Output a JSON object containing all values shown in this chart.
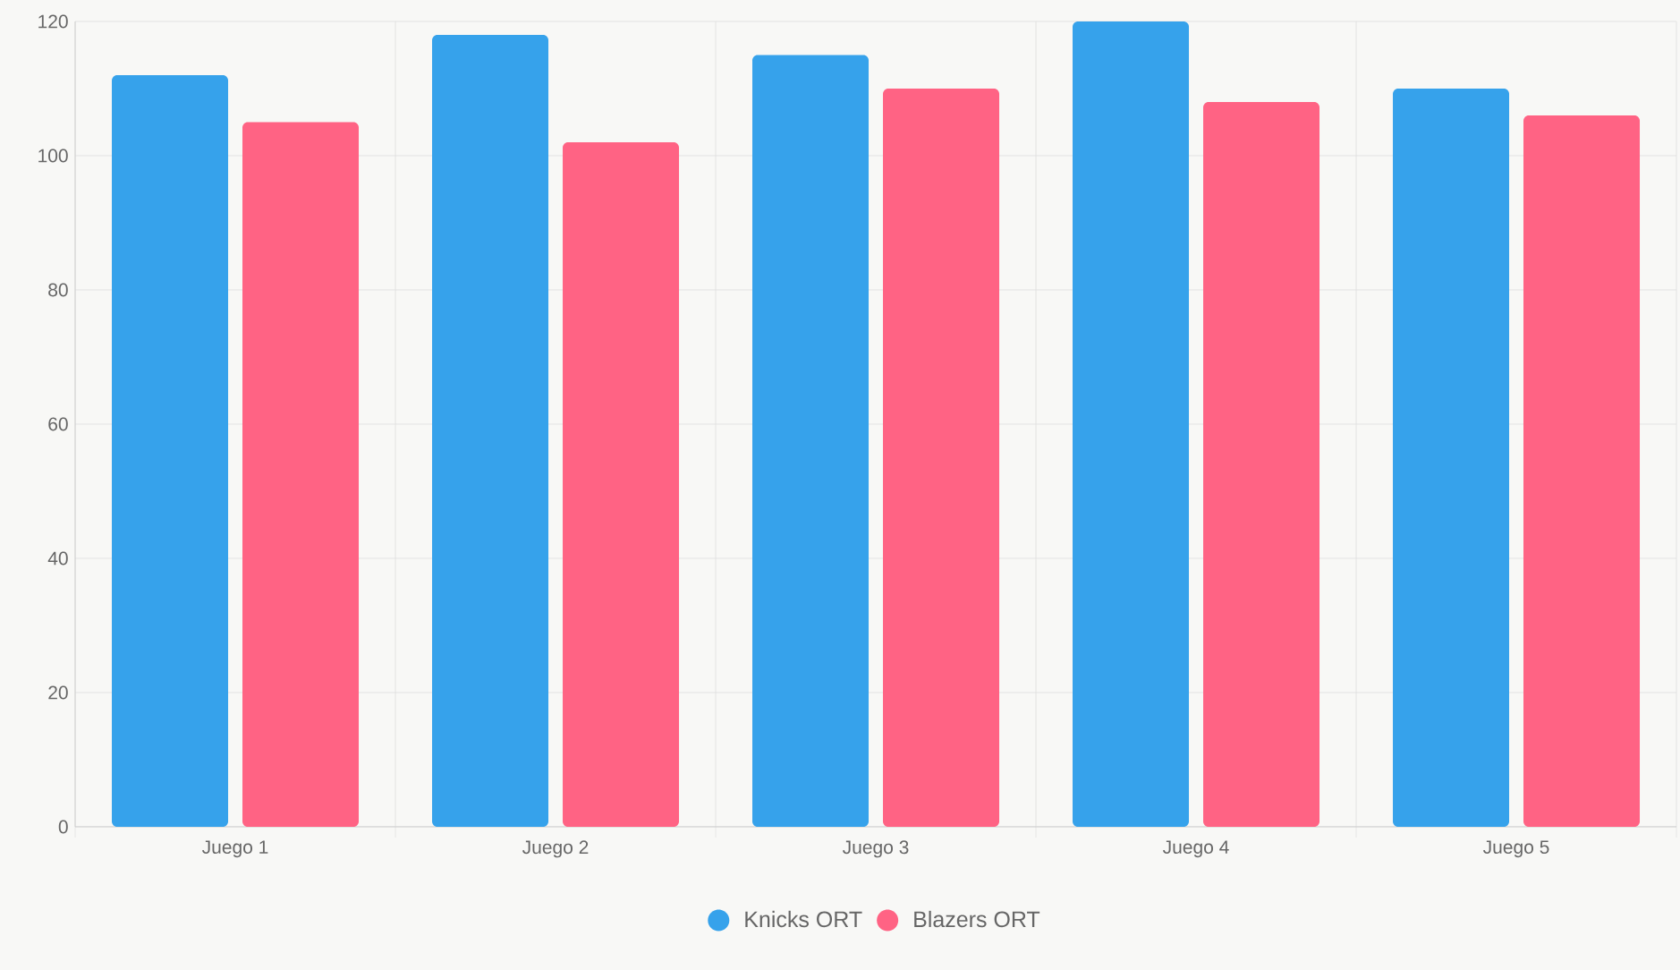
{
  "chart_data": {
    "type": "bar",
    "categories": [
      "Juego 1",
      "Juego 2",
      "Juego 3",
      "Juego 4",
      "Juego 5"
    ],
    "series": [
      {
        "name": "Knicks ORT",
        "color": "#36a2eb",
        "values": [
          112,
          118,
          115,
          120,
          110
        ]
      },
      {
        "name": "Blazers ORT",
        "color": "#ff6384",
        "values": [
          105,
          102,
          110,
          108,
          106
        ]
      }
    ],
    "ylim": [
      0,
      120
    ],
    "yticks": [
      0,
      20,
      40,
      60,
      80,
      100,
      120
    ],
    "grid": true,
    "legend": "bottom"
  }
}
